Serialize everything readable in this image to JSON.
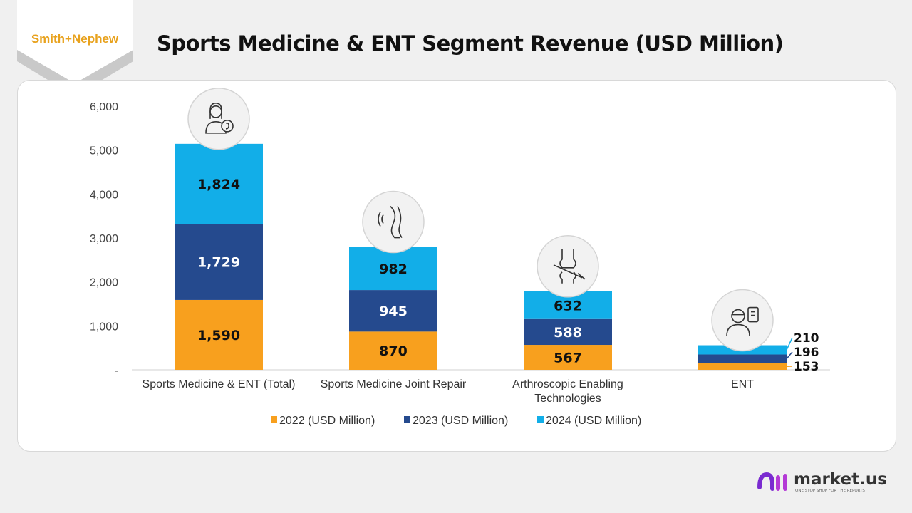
{
  "header": {
    "logo_text": "Smith+Nephew",
    "title": "Sports Medicine & ENT Segment Revenue (USD Million)"
  },
  "footer": {
    "brand_name": "market.us",
    "brand_tagline": "ONE STOP SHOP FOR THE REPORTS"
  },
  "colors": {
    "2022": "#F8A01E",
    "2023": "#254A8E",
    "2024": "#12AEE8",
    "logo": "#E8A21E"
  },
  "chart_data": {
    "type": "bar",
    "stacked": true,
    "title": "Sports Medicine & ENT Segment Revenue (USD Million)",
    "categories": [
      "Sports Medicine & ENT (Total)",
      "Sports Medicine Joint Repair",
      "Arthroscopic Enabling Technologies",
      "ENT"
    ],
    "category_icons": [
      "doctor-ear-icon",
      "knee-pain-icon",
      "knee-joint-arthroscope-icon",
      "patient-clipboard-icon"
    ],
    "series": [
      {
        "name": "2022 (USD Million)",
        "values": [
          1590,
          870,
          567,
          153
        ]
      },
      {
        "name": "2023 (USD Million)",
        "values": [
          1729,
          945,
          588,
          196
        ]
      },
      {
        "name": "2024 (USD Million)",
        "values": [
          1824,
          982,
          632,
          210
        ]
      }
    ],
    "data_labels": [
      [
        "1,590",
        "870",
        "567",
        "153"
      ],
      [
        "1,729",
        "945",
        "588",
        "196"
      ],
      [
        "1,824",
        "982",
        "632",
        "210"
      ]
    ],
    "yticks": [
      "-",
      "1,000",
      "2,000",
      "3,000",
      "4,000",
      "5,000",
      "6,000"
    ],
    "ylim": [
      0,
      6000
    ],
    "grid": false,
    "legend_position": "bottom"
  }
}
